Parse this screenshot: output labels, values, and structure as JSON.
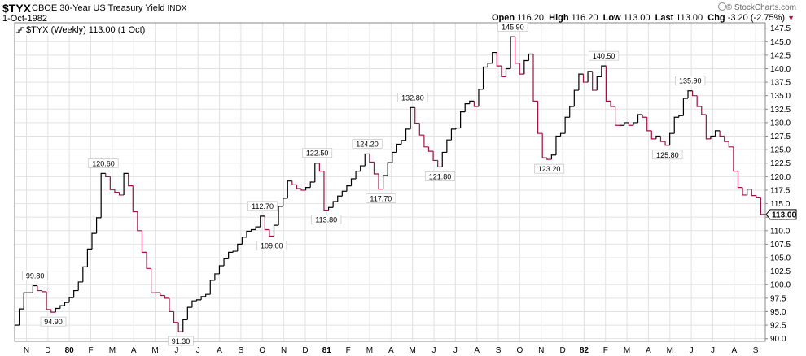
{
  "header": {
    "symbol": "$TYX",
    "description": "CBOE 30-Year US Treasury Yield",
    "exchange": "INDX",
    "date": "1-Oct-1982",
    "copyright": "© StockCharts.com",
    "open_label": "Open",
    "open": "116.20",
    "high_label": "High",
    "high": "116.20",
    "low_label": "Low",
    "low": "113.00",
    "last_label": "Last",
    "last": "113.00",
    "chg_label": "Chg",
    "chg": "-3.20 (-2.75%)"
  },
  "legend": {
    "text": "$TYX (Weekly) 113.00 (1 Oct)"
  },
  "colors": {
    "up": "#000000",
    "down": "#a0123f",
    "grid": "#e2e2e2",
    "axis": "#888888"
  },
  "chart_data": {
    "type": "line",
    "style": "step",
    "series": [
      {
        "name": "$TYX (Weekly)",
        "values": [
          92.5,
          95.5,
          98.5,
          98.5,
          99.8,
          98.9,
          98.7,
          95.4,
          94.9,
          95.6,
          96.1,
          96.7,
          97.6,
          98.9,
          100.5,
          103.3,
          106.6,
          109.5,
          112.4,
          120.6,
          120.0,
          117.6,
          117.1,
          116.6,
          120.6,
          118.3,
          113.5,
          110.0,
          106.0,
          103.0,
          98.5,
          98.5,
          98.0,
          97.5,
          95.0,
          93.0,
          91.3,
          93.5,
          95.8,
          97.0,
          97.2,
          97.8,
          98.2,
          100.8,
          102.0,
          103.5,
          104.8,
          106.0,
          106.2,
          107.5,
          108.8,
          109.9,
          110.2,
          110.7,
          112.7,
          110.2,
          109.0,
          111.0,
          114.5,
          116.0,
          119.2,
          118.5,
          117.8,
          117.5,
          118.0,
          119.0,
          122.5,
          121.0,
          113.8,
          114.3,
          115.4,
          116.4,
          117.3,
          118.3,
          119.6,
          121.0,
          122.0,
          124.2,
          122.7,
          120.5,
          117.7,
          120.2,
          122.6,
          124.5,
          126.0,
          126.7,
          128.8,
          132.8,
          129.9,
          127.7,
          125.5,
          124.7,
          123.0,
          121.8,
          124.5,
          126.8,
          128.8,
          129.0,
          132.0,
          133.5,
          134.0,
          133.0,
          136.2,
          140.3,
          141.0,
          143.0,
          140.5,
          138.5,
          140.0,
          145.9,
          141.0,
          139.0,
          141.5,
          142.7,
          134.0,
          128.0,
          123.5,
          123.2,
          124.0,
          127.5,
          128.0,
          131.0,
          133.0,
          136.0,
          139.0,
          137.5,
          139.5,
          136.0,
          138.5,
          140.5,
          134.0,
          133.0,
          129.5,
          129.5,
          130.0,
          129.5,
          130.0,
          131.5,
          131.0,
          128.5,
          127.0,
          127.5,
          126.5,
          125.8,
          128.0,
          131.0,
          131.3,
          134.5,
          135.9,
          135.0,
          133.0,
          131.5,
          127.0,
          127.5,
          128.5,
          127.5,
          126.5,
          125.5,
          121.0,
          118.0,
          116.6,
          117.7,
          116.5,
          116.2,
          113.0
        ]
      }
    ],
    "x_ticks": [
      "N",
      "D",
      "80",
      "F",
      "M",
      "A",
      "M",
      "J",
      "J",
      "A",
      "S",
      "O",
      "N",
      "D",
      "81",
      "F",
      "M",
      "A",
      "M",
      "J",
      "J",
      "A",
      "S",
      "O",
      "N",
      "D",
      "82",
      "F",
      "M",
      "A",
      "M",
      "J",
      "J",
      "A",
      "S"
    ],
    "bold_x_ticks": [
      "80",
      "81",
      "82"
    ],
    "y_ticks": [
      "90.0",
      "92.5",
      "95.0",
      "97.5",
      "100.0",
      "102.5",
      "105.0",
      "107.5",
      "110.0",
      "112.5",
      "115.0",
      "117.5",
      "120.0",
      "122.5",
      "125.0",
      "127.5",
      "130.0",
      "132.5",
      "135.0",
      "137.5",
      "140.0",
      "142.5",
      "145.0",
      "147.5"
    ],
    "ylim": [
      89.5,
      148.5
    ],
    "annotations": [
      {
        "text": "99.80",
        "index": 4,
        "value": 99.8,
        "pos": "above"
      },
      {
        "text": "94.90",
        "index": 8,
        "value": 94.9,
        "pos": "below"
      },
      {
        "text": "120.60",
        "index": 19,
        "value": 120.6,
        "pos": "above"
      },
      {
        "text": "91.30",
        "index": 36,
        "value": 91.3,
        "pos": "below"
      },
      {
        "text": "112.70",
        "index": 54,
        "value": 112.7,
        "pos": "above"
      },
      {
        "text": "109.00",
        "index": 56,
        "value": 109.0,
        "pos": "below"
      },
      {
        "text": "122.50",
        "index": 66,
        "value": 122.5,
        "pos": "above"
      },
      {
        "text": "113.80",
        "index": 68,
        "value": 113.8,
        "pos": "below"
      },
      {
        "text": "124.20",
        "index": 77,
        "value": 124.2,
        "pos": "above"
      },
      {
        "text": "117.70",
        "index": 80,
        "value": 117.7,
        "pos": "below"
      },
      {
        "text": "132.80",
        "index": 87,
        "value": 132.8,
        "pos": "above"
      },
      {
        "text": "121.80",
        "index": 93,
        "value": 121.8,
        "pos": "below"
      },
      {
        "text": "145.90",
        "index": 109,
        "value": 145.9,
        "pos": "above"
      },
      {
        "text": "123.20",
        "index": 117,
        "value": 123.2,
        "pos": "below"
      },
      {
        "text": "140.50",
        "index": 129,
        "value": 140.5,
        "pos": "above"
      },
      {
        "text": "125.80",
        "index": 143,
        "value": 125.8,
        "pos": "below"
      },
      {
        "text": "135.90",
        "index": 148,
        "value": 135.9,
        "pos": "above"
      }
    ],
    "last_value_label": "113.00",
    "grid": true,
    "y_axis_side": "right"
  }
}
